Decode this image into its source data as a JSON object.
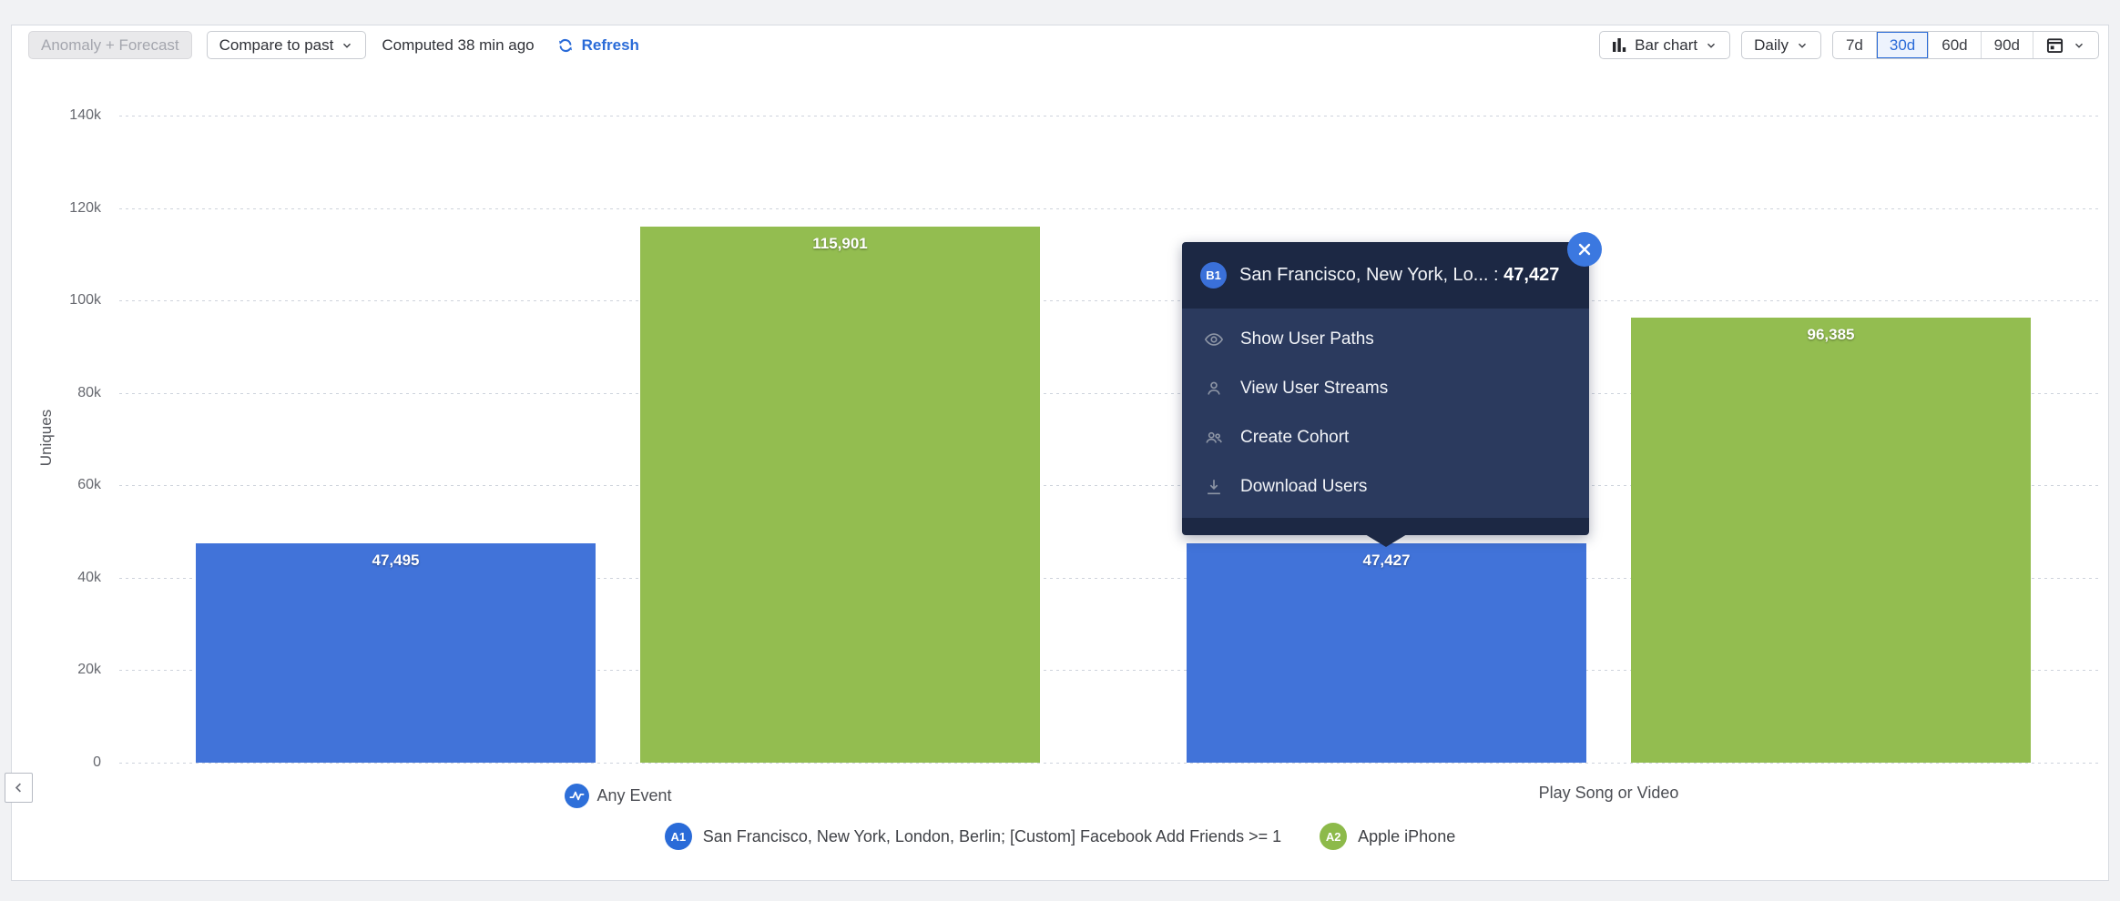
{
  "toolbar": {
    "anomaly_forecast_label": "Anomaly + Forecast",
    "compare_label": "Compare to past",
    "computed_label": "Computed 38 min ago",
    "refresh_label": "Refresh",
    "chart_type_label": "Bar chart",
    "interval_label": "Daily",
    "ranges": [
      "7d",
      "30d",
      "60d",
      "90d"
    ],
    "selected_range": "30d"
  },
  "chart_data": {
    "type": "bar",
    "title": "",
    "xlabel": "",
    "ylabel": "Uniques",
    "ylim": [
      0,
      140000
    ],
    "ytick_labels": [
      "140k",
      "120k",
      "100k",
      "80k",
      "60k",
      "40k",
      "20k",
      "0"
    ],
    "grid": "dotted horizontal",
    "legend_position": "bottom center",
    "categories": [
      {
        "label": "Any Event",
        "icon": "any-event-icon"
      },
      {
        "label": "Play Song or Video",
        "icon": null
      }
    ],
    "series": [
      {
        "name": "San Francisco, New York, London, Berlin; [Custom] Facebook Add Friends >= 1",
        "badge": "A1",
        "color": "#4173d9",
        "values": [
          47495,
          47427
        ],
        "value_labels": [
          "47,495",
          "47,427"
        ]
      },
      {
        "name": "Apple iPhone",
        "badge": "A2",
        "color": "#93bd50",
        "values": [
          115901,
          96385
        ],
        "value_labels": [
          "115,901",
          "96,385"
        ]
      }
    ]
  },
  "popup": {
    "badge": "B1",
    "title_prefix": "San Francisco, New York, Lo... : ",
    "value": "47,427",
    "items": [
      "Show User Paths",
      "View User Streams",
      "Create Cohort",
      "Download Users"
    ]
  },
  "colors": {
    "accent_blue": "#2a6bd8",
    "bar_blue": "#4173d9",
    "bar_green": "#93bd50",
    "badge_green": "#8dba4a",
    "popup_dark": "#1c2844",
    "popup_body": "#2b3a5e"
  }
}
